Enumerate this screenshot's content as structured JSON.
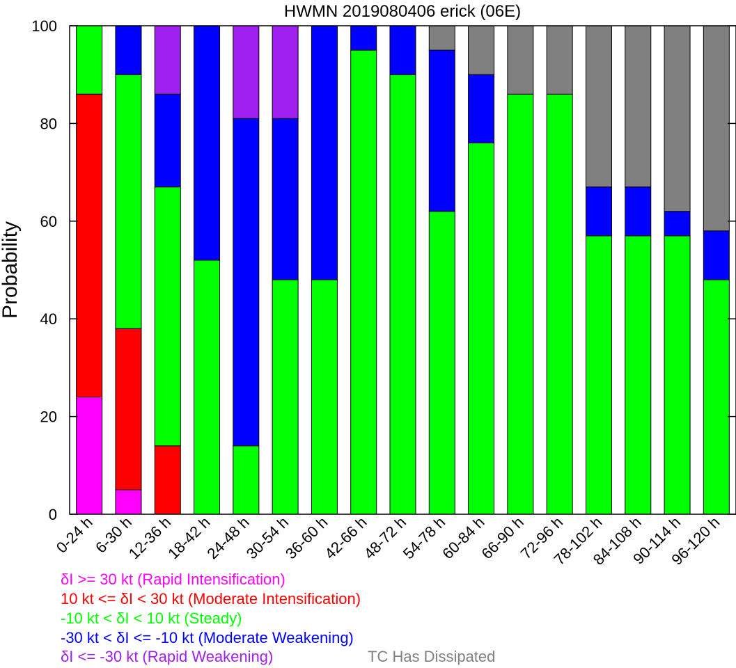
{
  "chart_data": {
    "type": "bar",
    "stacked": true,
    "title": "HWMN 2019080406 erick (06E)",
    "xlabel": "",
    "ylabel": "Probability",
    "ylim": [
      0,
      100
    ],
    "yticks": [
      "0",
      "20",
      "40",
      "60",
      "80",
      "100"
    ],
    "grid": false,
    "categories": [
      "0-24 h",
      "6-30 h",
      "12-36 h",
      "18-42 h",
      "24-48 h",
      "30-54 h",
      "36-60 h",
      "42-66 h",
      "48-72 h",
      "54-78 h",
      "60-84 h",
      "66-90 h",
      "72-96 h",
      "78-102 h",
      "84-108 h",
      "90-114 h",
      "96-120 h"
    ],
    "series": [
      {
        "name": "δI >= 30 kt (Rapid Intensification)",
        "color": "#ff00ff",
        "values": [
          24,
          5,
          0,
          0,
          0,
          0,
          0,
          0,
          0,
          0,
          0,
          0,
          0,
          0,
          0,
          0,
          0
        ]
      },
      {
        "name": "10 kt <= δI < 30 kt (Moderate Intensification)",
        "color": "#ff0000",
        "values": [
          62,
          33,
          14,
          0,
          0,
          0,
          0,
          0,
          0,
          0,
          0,
          0,
          0,
          0,
          0,
          0,
          0
        ]
      },
      {
        "name": "-10 kt < δI < 10 kt (Steady)",
        "color": "#00ff00",
        "values": [
          14,
          52,
          53,
          52,
          14,
          48,
          48,
          95,
          90,
          62,
          76,
          86,
          86,
          57,
          57,
          57,
          48
        ]
      },
      {
        "name": "-30 kt < δI <= -10 kt (Moderate Weakening)",
        "color": "#0000ff",
        "values": [
          0,
          10,
          19,
          48,
          67,
          33,
          52,
          5,
          10,
          33,
          14,
          0,
          0,
          10,
          10,
          5,
          10
        ]
      },
      {
        "name": "δI <= -30 kt (Rapid Weakening)",
        "color": "#a020f0",
        "values": [
          0,
          0,
          14,
          0,
          19,
          19,
          0,
          0,
          0,
          0,
          0,
          0,
          0,
          0,
          0,
          0,
          0
        ]
      },
      {
        "name": "TC Has Dissipated",
        "color": "#808080",
        "values": [
          0,
          0,
          0,
          0,
          0,
          0,
          0,
          0,
          0,
          5,
          10,
          14,
          14,
          33,
          33,
          38,
          42
        ]
      }
    ]
  }
}
